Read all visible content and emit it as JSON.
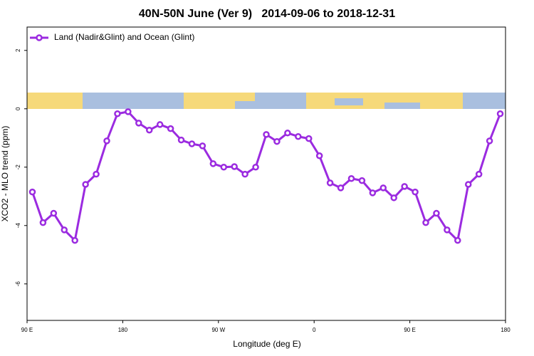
{
  "chart_data": {
    "type": "line",
    "title": "40N-50N June (Ver 9)   2014-09-06 to 2018-12-31",
    "x_label": "Longitude (deg E)",
    "y_label": "XCO2 - MLO trend (ppm)",
    "x": [
      95,
      105,
      115,
      125,
      135,
      145,
      155,
      165,
      175,
      185,
      195,
      205,
      215,
      225,
      235,
      245,
      255,
      265,
      275,
      285,
      295,
      305,
      315,
      325,
      335,
      345,
      355,
      365,
      375,
      385,
      395,
      405,
      415,
      425,
      435,
      445,
      455,
      465,
      475,
      485,
      495,
      505,
      515,
      525,
      535
    ],
    "series": [
      {
        "name": "Land (Nadir&Glint) and Ocean (Glint)",
        "color": "#9b2be0",
        "values": [
          -2.85,
          -3.9,
          -3.58,
          -4.15,
          -4.51,
          -2.59,
          -2.24,
          -1.1,
          -0.17,
          -0.1,
          -0.49,
          -0.73,
          -0.54,
          -0.68,
          -1.07,
          -1.2,
          -1.27,
          -1.88,
          -2.0,
          -1.98,
          -2.24,
          -2.0,
          -0.88,
          -1.12,
          -0.83,
          -0.95,
          -1.02,
          -1.61,
          -2.54,
          -2.71,
          -2.39,
          -2.46,
          -2.88,
          -2.71,
          -3.05,
          -2.66,
          -2.85,
          -3.9,
          -3.58,
          -4.15,
          -4.51,
          -2.59,
          -2.24,
          -1.1,
          -0.17
        ]
      }
    ],
    "xlim": [
      90,
      540
    ],
    "xticks": [
      {
        "value": 90,
        "label": "90 E"
      },
      180,
      {
        "value": 270,
        "label": "90 W"
      },
      {
        "value": 360,
        "label": "0"
      },
      {
        "value": 450,
        "label": "90 E"
      },
      {
        "value": 540,
        "label": "180"
      }
    ],
    "ylim": [
      -7.25,
      2.8
    ],
    "yticks": [
      -6,
      -4,
      -2,
      0,
      2
    ],
    "grid": false,
    "legend": "top-left"
  }
}
